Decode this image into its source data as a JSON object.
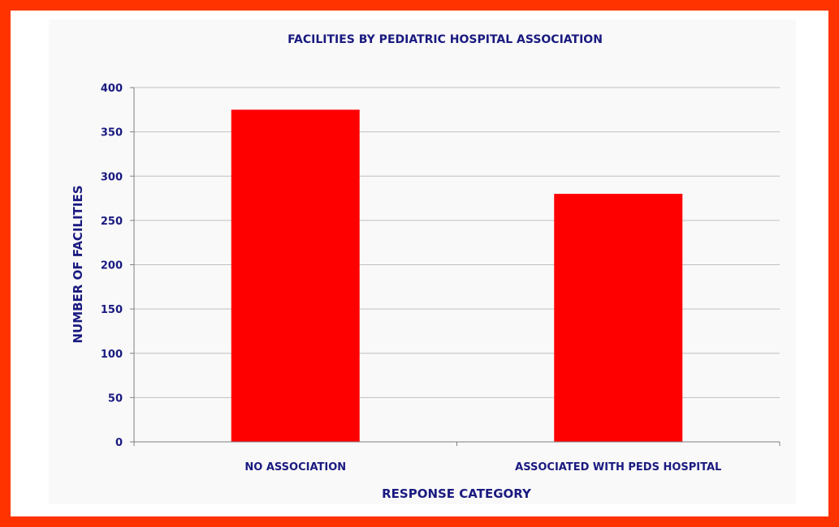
{
  "chart_data": {
    "type": "bar",
    "title": "FACILITIES BY PEDIATRIC HOSPITAL ASSOCIATION",
    "xlabel": "RESPONSE CATEGORY",
    "ylabel": "NUMBER OF FACILITIES",
    "categories": [
      "NO ASSOCIATION",
      "ASSOCIATED WITH PEDS HOSPITAL"
    ],
    "values": [
      375,
      280
    ],
    "ylim": [
      0,
      400
    ],
    "yticks": [
      "0",
      "50",
      "100",
      "150",
      "200",
      "250",
      "300",
      "350",
      "400"
    ],
    "grid": true,
    "legend": "none",
    "bar_color": "#ff0000",
    "frame_color": "#ff3300",
    "text_color": "#1a1a80"
  }
}
